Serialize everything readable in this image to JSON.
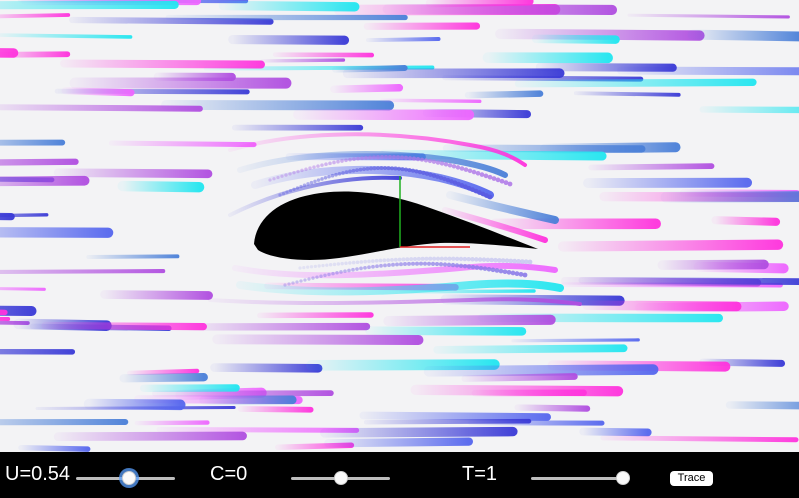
{
  "controls": {
    "u_label": "U=0.54",
    "u_value": 0.54,
    "c_label": "C=0",
    "c_value": 0,
    "t_label": "T=1",
    "t_value": 1,
    "trace_label": "Trace"
  },
  "colors": {
    "background": "#f3f3f5",
    "airfoil": "#000000",
    "axis_x": "#e02020",
    "axis_y": "#20b020",
    "streak_palette": [
      "#ff33dd",
      "#22e6f0",
      "#3a3ad6",
      "#4a7fd8",
      "#b04ee0",
      "#ee66ff",
      "#5566ee"
    ]
  }
}
